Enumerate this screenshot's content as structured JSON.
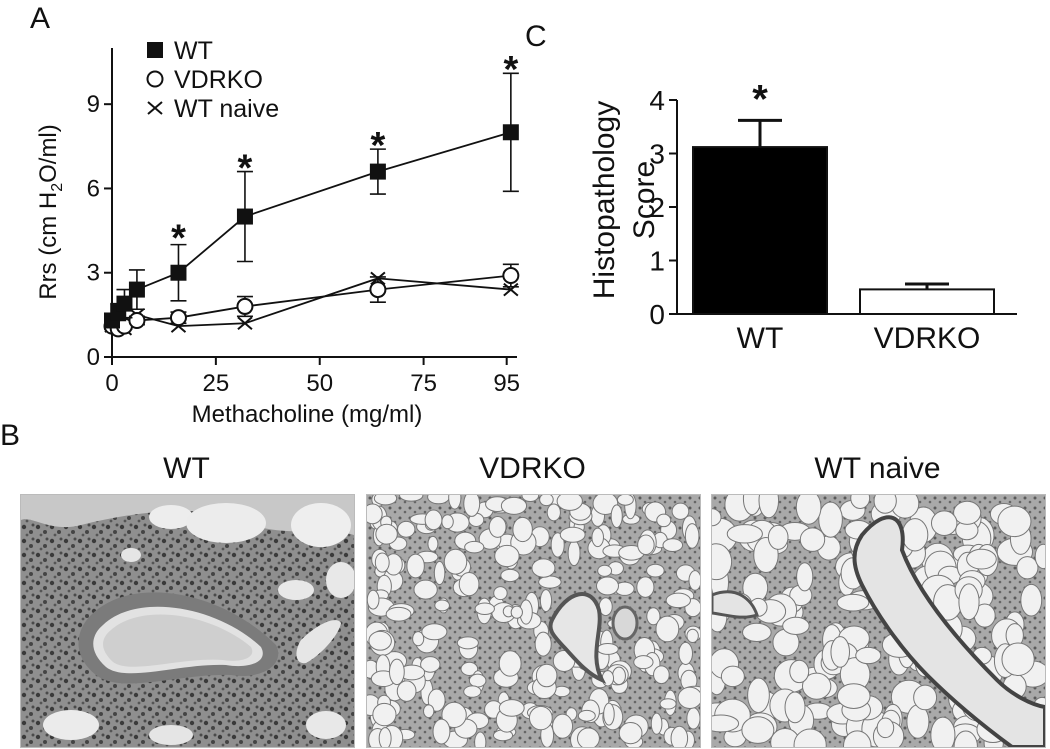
{
  "panels": {
    "a": "A",
    "b": "B",
    "c": "C"
  },
  "chart_data": [
    {
      "type": "line",
      "panel": "A",
      "xlabel": "Methacholine (mg/ml)",
      "ylabel_parts": [
        "Rrs (cm H",
        "2",
        "O/ml)"
      ],
      "xlim": [
        0,
        97
      ],
      "ylim": [
        0,
        11
      ],
      "xticks": [
        0,
        25,
        50,
        75,
        95
      ],
      "yticks": [
        0,
        3,
        6,
        9
      ],
      "legend": "top-left",
      "grid": false,
      "series": [
        {
          "name": "WT",
          "marker": "filled-square",
          "x": [
            0,
            1.5,
            3,
            6,
            16,
            32,
            64,
            96
          ],
          "y": [
            1.3,
            1.6,
            1.9,
            2.4,
            3.0,
            5.0,
            6.6,
            8.0
          ],
          "err": [
            0.2,
            0.3,
            0.5,
            0.7,
            1.0,
            1.6,
            0.8,
            2.1
          ]
        },
        {
          "name": "VDRKO",
          "marker": "open-circle",
          "x": [
            0,
            1.5,
            3,
            6,
            16,
            32,
            64,
            96
          ],
          "y": [
            1.1,
            1.0,
            1.1,
            1.3,
            1.4,
            1.8,
            2.4,
            2.9
          ],
          "err": [
            0.1,
            0.1,
            0.1,
            0.15,
            0.2,
            0.35,
            0.45,
            0.4
          ]
        },
        {
          "name": "WT naive",
          "marker": "cross",
          "x": [
            0,
            1.5,
            3,
            6,
            16,
            32,
            64,
            96
          ],
          "y": [
            1.1,
            1.1,
            1.0,
            1.5,
            1.1,
            1.2,
            2.8,
            2.4
          ],
          "err": [
            0,
            0,
            0,
            0,
            0,
            0,
            0,
            0
          ]
        }
      ],
      "annotations": [
        {
          "text": "*",
          "x": 16,
          "y": 4.5
        },
        {
          "text": "*",
          "x": 32,
          "y": 7.0
        },
        {
          "text": "*",
          "x": 64,
          "y": 7.8
        },
        {
          "text": "*",
          "x": 96,
          "y": 10.5
        }
      ]
    },
    {
      "type": "bar",
      "panel": "C",
      "ylabel_lines": [
        "Histopathology",
        "Score"
      ],
      "ylim": [
        0,
        4
      ],
      "yticks": [
        0,
        1,
        2,
        3,
        4
      ],
      "categories": [
        "WT",
        "VDRKO"
      ],
      "values": [
        3.12,
        0.46
      ],
      "errors": [
        0.5,
        0.1
      ],
      "colors": [
        "#000000",
        "#ffffff"
      ],
      "annotations": [
        {
          "text": "*",
          "category": "WT"
        }
      ]
    }
  ],
  "photos": [
    {
      "title": "WT",
      "kind": "wt"
    },
    {
      "title": "VDRKO",
      "kind": "vdrko"
    },
    {
      "title": "WT naive",
      "kind": "naive"
    }
  ]
}
